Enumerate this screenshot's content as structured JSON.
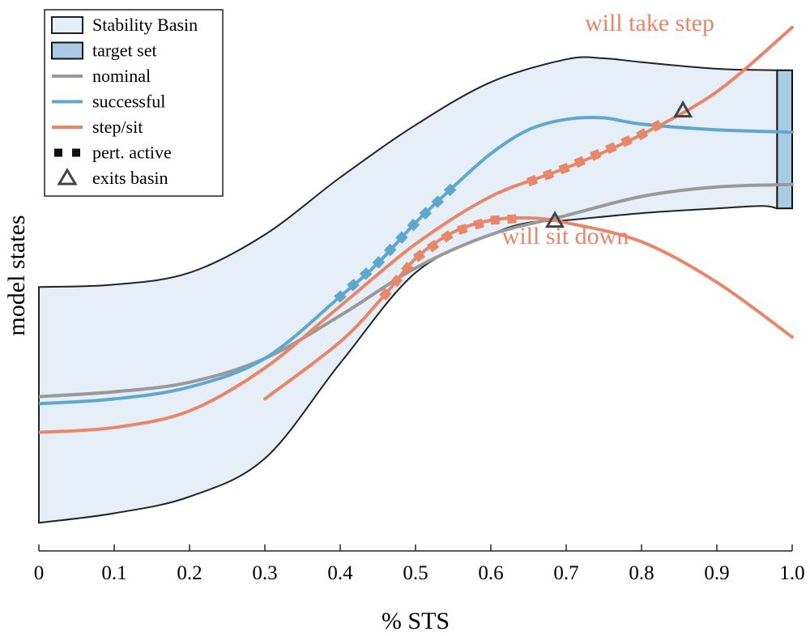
{
  "chart_data": {
    "type": "line",
    "xlabel": "% STS",
    "ylabel": "model states",
    "xlim": [
      0,
      1
    ],
    "ylim": [
      0,
      1
    ],
    "x_ticks": [
      0,
      0.1,
      0.2,
      0.3,
      0.4,
      0.5,
      0.6,
      0.7,
      0.8,
      0.9,
      1.0
    ],
    "x_tick_labels": [
      "0",
      "0.1",
      "0.2",
      "0.3",
      "0.4",
      "0.5",
      "0.6",
      "0.7",
      "0.8",
      "0.9",
      "1.0"
    ],
    "colors": {
      "basin_fill": "#e6eff7",
      "basin_edge": "#222222",
      "target_fill": "#a9cbe3",
      "nominal": "#999999",
      "successful": "#5fa7cf",
      "stepsit": "#e8866a",
      "marker_edge": "#444444"
    },
    "legend": {
      "position": "top-left",
      "entries": [
        {
          "label": "Stability Basin",
          "kind": "basin"
        },
        {
          "label": "target set",
          "kind": "target"
        },
        {
          "label": "nominal",
          "kind": "nominal"
        },
        {
          "label": "successful",
          "kind": "successful"
        },
        {
          "label": "step/sit",
          "kind": "stepsit"
        },
        {
          "label": "pert. active",
          "kind": "pert"
        },
        {
          "label": "exits basin",
          "kind": "exit"
        }
      ]
    },
    "basin": {
      "upper": [
        [
          0,
          0.52
        ],
        [
          0.1,
          0.525
        ],
        [
          0.2,
          0.55
        ],
        [
          0.3,
          0.63
        ],
        [
          0.4,
          0.75
        ],
        [
          0.5,
          0.86
        ],
        [
          0.6,
          0.95
        ],
        [
          0.7,
          0.998
        ],
        [
          0.75,
          1.0
        ],
        [
          0.8,
          0.992
        ],
        [
          0.9,
          0.978
        ],
        [
          0.98,
          0.975
        ]
      ],
      "lower": [
        [
          0,
          0.025
        ],
        [
          0.1,
          0.045
        ],
        [
          0.2,
          0.08
        ],
        [
          0.3,
          0.16
        ],
        [
          0.4,
          0.36
        ],
        [
          0.5,
          0.55
        ],
        [
          0.6,
          0.63
        ],
        [
          0.65,
          0.655
        ],
        [
          0.7,
          0.66
        ],
        [
          0.8,
          0.675
        ],
        [
          0.9,
          0.685
        ],
        [
          0.96,
          0.69
        ],
        [
          0.98,
          0.685
        ]
      ]
    },
    "target_set": {
      "x": [
        0.98,
        1.0
      ],
      "y": [
        0.685,
        0.975
      ]
    },
    "series": [
      {
        "name": "nominal",
        "color_key": "nominal",
        "points": [
          [
            0,
            0.29
          ],
          [
            0.1,
            0.3
          ],
          [
            0.2,
            0.32
          ],
          [
            0.3,
            0.37
          ],
          [
            0.4,
            0.46
          ],
          [
            0.5,
            0.56
          ],
          [
            0.6,
            0.63
          ],
          [
            0.7,
            0.67
          ],
          [
            0.8,
            0.71
          ],
          [
            0.9,
            0.73
          ],
          [
            1.0,
            0.735
          ]
        ]
      },
      {
        "name": "successful",
        "color_key": "successful",
        "points": [
          [
            0,
            0.275
          ],
          [
            0.1,
            0.285
          ],
          [
            0.2,
            0.31
          ],
          [
            0.3,
            0.37
          ],
          [
            0.4,
            0.5
          ],
          [
            0.45,
            0.57
          ],
          [
            0.5,
            0.655
          ],
          [
            0.55,
            0.73
          ],
          [
            0.6,
            0.8
          ],
          [
            0.65,
            0.85
          ],
          [
            0.7,
            0.872
          ],
          [
            0.75,
            0.875
          ],
          [
            0.8,
            0.862
          ],
          [
            0.9,
            0.85
          ],
          [
            1.0,
            0.845
          ]
        ]
      },
      {
        "name": "step/sit (step)",
        "color_key": "stepsit",
        "points": [
          [
            0,
            0.215
          ],
          [
            0.1,
            0.225
          ],
          [
            0.2,
            0.26
          ],
          [
            0.3,
            0.35
          ],
          [
            0.4,
            0.48
          ],
          [
            0.5,
            0.61
          ],
          [
            0.6,
            0.71
          ],
          [
            0.7,
            0.77
          ],
          [
            0.8,
            0.84
          ],
          [
            0.9,
            0.93
          ],
          [
            1.0,
            1.065
          ]
        ]
      },
      {
        "name": "step/sit (sit)",
        "color_key": "stepsit",
        "points": [
          [
            0.3,
            0.285
          ],
          [
            0.4,
            0.405
          ],
          [
            0.46,
            0.505
          ],
          [
            0.5,
            0.58
          ],
          [
            0.55,
            0.635
          ],
          [
            0.6,
            0.66
          ],
          [
            0.65,
            0.665
          ],
          [
            0.7,
            0.655
          ],
          [
            0.8,
            0.615
          ],
          [
            0.9,
            0.53
          ],
          [
            1.0,
            0.415
          ]
        ]
      }
    ],
    "perturbation_segments": [
      {
        "series": "successful",
        "x_range": [
          0.4,
          0.55
        ],
        "color_key": "successful"
      },
      {
        "series": "step/sit (step)",
        "x_range": [
          0.655,
          0.83
        ],
        "color_key": "stepsit"
      },
      {
        "series": "step/sit (sit)",
        "x_range": [
          0.46,
          0.645
        ],
        "color_key": "stepsit"
      }
    ],
    "exit_points": [
      {
        "series": "step/sit (step)",
        "x": 0.855
      },
      {
        "series": "step/sit (sit)",
        "x": 0.685
      }
    ],
    "annotations": [
      {
        "text": "will take step",
        "color_key": "stepsit"
      },
      {
        "text": "will sit down",
        "color_key": "stepsit"
      }
    ]
  }
}
